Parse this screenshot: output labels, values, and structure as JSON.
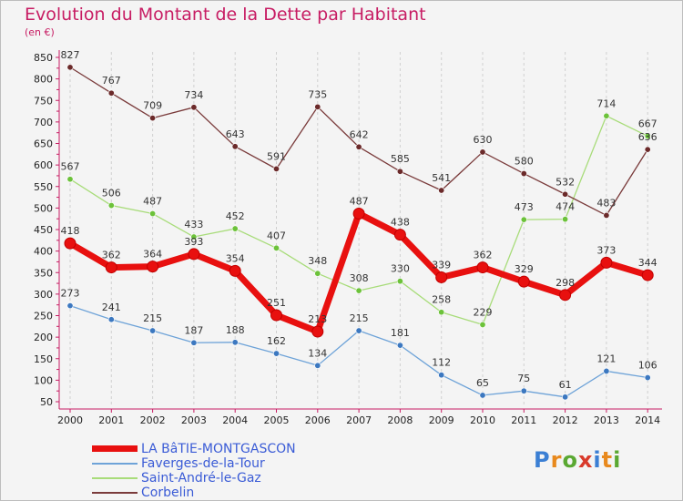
{
  "header": {
    "title": "Evolution du Montant de la Dette par Habitant",
    "subtitle": "(en €)"
  },
  "logo": {
    "letters": [
      {
        "ch": "P",
        "color": "#3b7fd4"
      },
      {
        "ch": "r",
        "color": "#e8891d"
      },
      {
        "ch": "o",
        "color": "#5aa832"
      },
      {
        "ch": "x",
        "color": "#d93a2b"
      },
      {
        "ch": "i",
        "color": "#3b7fd4"
      },
      {
        "ch": "t",
        "color": "#e8891d"
      },
      {
        "ch": "i",
        "color": "#5aa832"
      }
    ]
  },
  "chart_data": {
    "type": "line",
    "title": "Evolution du Montant de la Dette par Habitant",
    "ylabel": "(en €)",
    "x": [
      "2000",
      "2001",
      "2002",
      "2003",
      "2004",
      "2005",
      "2006",
      "2007",
      "2008",
      "2009",
      "2010",
      "2011",
      "2012",
      "2013",
      "2014"
    ],
    "ylim": [
      50,
      850
    ],
    "yticks": [
      50,
      100,
      150,
      200,
      250,
      300,
      350,
      400,
      450,
      500,
      550,
      600,
      650,
      700,
      750,
      800,
      850
    ],
    "grid": "vertical dashed",
    "legend_position": "bottom-left",
    "series": [
      {
        "name": "LA BâTIE-MONTGASCON",
        "color": "#e8100f",
        "marker_color": "#e8100f",
        "emphasis": true,
        "values": [
          418,
          362,
          364,
          393,
          354,
          251,
          213,
          487,
          438,
          339,
          362,
          329,
          298,
          373,
          344
        ]
      },
      {
        "name": "Faverges-de-la-Tour",
        "color": "#6ea3d8",
        "marker_color": "#3c78c0",
        "values": [
          273,
          241,
          215,
          187,
          188,
          162,
          134,
          215,
          181,
          112,
          65,
          75,
          61,
          121,
          106
        ]
      },
      {
        "name": "Saint-André-le-Gaz",
        "color": "#a8dc7a",
        "marker_color": "#6cc23a",
        "values": [
          567,
          506,
          487,
          433,
          452,
          407,
          348,
          308,
          330,
          258,
          229,
          473,
          474,
          714,
          667
        ]
      },
      {
        "name": "Corbelin",
        "color": "#7a3b3b",
        "marker_color": "#6b2a2a",
        "values": [
          827,
          767,
          709,
          734,
          643,
          591,
          735,
          642,
          585,
          541,
          630,
          580,
          532,
          483,
          636
        ]
      }
    ]
  }
}
